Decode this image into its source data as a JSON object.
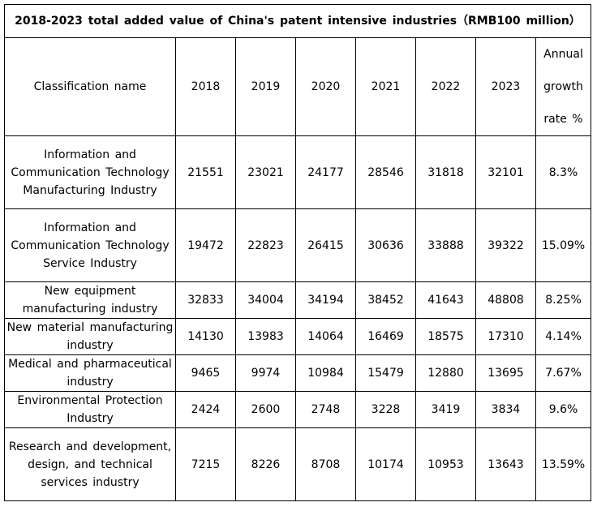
{
  "chart_data": {
    "type": "table",
    "title": "2018-2023 total added value of China's patent intensive industries（RMB100 million）",
    "columns": [
      "Classification  name",
      "2018",
      "2019",
      "2020",
      "2021",
      "2022",
      "2023",
      "Annual growth rate %"
    ],
    "growth_header_lines": [
      "Annual",
      "growth",
      "rate %"
    ],
    "rows": [
      {
        "name": "Information  and Communication Technology Manufacturing  Industry",
        "values": [
          "21551",
          "23021",
          "24177",
          "28546",
          "31818",
          "32101"
        ],
        "growth": "8.3%"
      },
      {
        "name": "Information  and Communication Technology  Service Industry",
        "values": [
          "19472",
          "22823",
          "26415",
          "30636",
          "33888",
          "39322"
        ],
        "growth": "15.09%"
      },
      {
        "name": "New equipment manufacturing  industry",
        "values": [
          "32833",
          "34004",
          "34194",
          "38452",
          "41643",
          "48808"
        ],
        "growth": "8.25%"
      },
      {
        "name": "New material manufacturing  industry",
        "values": [
          "14130",
          "13983",
          "14064",
          "16469",
          "18575",
          "17310"
        ],
        "growth": "4.14%"
      },
      {
        "name": "Medical  and pharmaceutical  industry",
        "values": [
          "9465",
          "9974",
          "10984",
          "15479",
          "12880",
          "13695"
        ],
        "growth": "7.67%"
      },
      {
        "name": "Environmental  Protection Industry",
        "values": [
          "2424",
          "2600",
          "2748",
          "3228",
          "3419",
          "3834"
        ],
        "growth": "9.6%"
      },
      {
        "name": "Research and development,  design, and technical services industry",
        "values": [
          "7215",
          "8226",
          "8708",
          "10174",
          "10953",
          "13643"
        ],
        "growth": "13.59%"
      }
    ]
  }
}
